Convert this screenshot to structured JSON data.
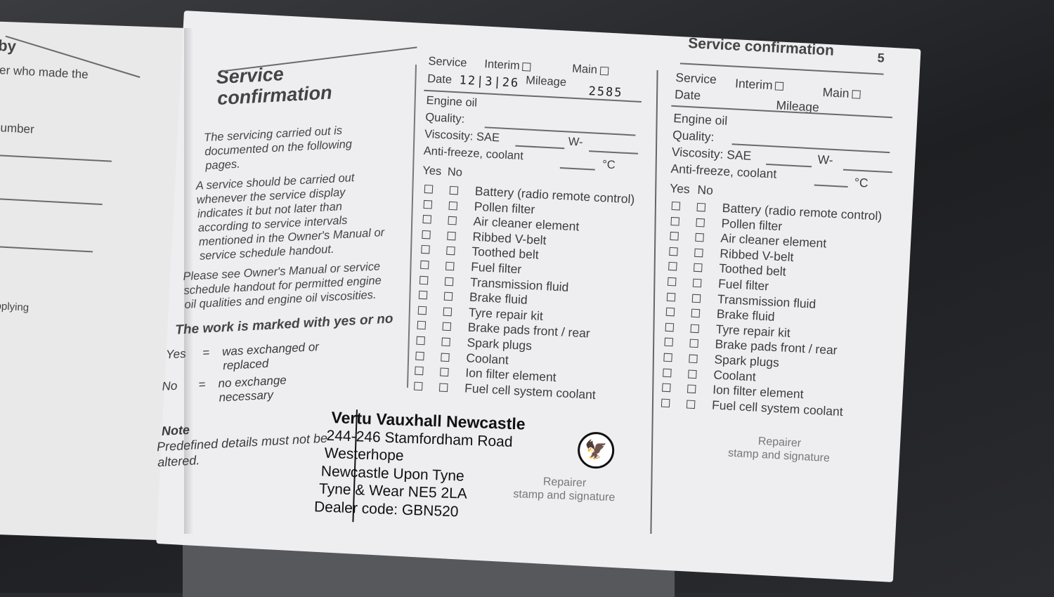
{
  "left_page": {
    "fragments": [
      "by",
      "ler who made the",
      "number",
      "supplying",
      "r"
    ]
  },
  "header": {
    "title": "Service confirmation",
    "page_number": "5"
  },
  "intro": {
    "title_line1": "Service",
    "title_line2": "confirmation",
    "p1": "The servicing carried out is documented on the following pages.",
    "p2": "A service should be carried out whenever the service display indicates it but not later than according to service intervals mentioned in the Owner's Manual or service schedule handout.",
    "p3": "Please see Owner's Manual or service schedule handout for permitted engine oil qualities and engine oil viscosities.",
    "p4": "The work is marked with yes or no",
    "yes_label": "Yes",
    "yes_eq": "=",
    "yes_text": "was exchanged or replaced",
    "no_label": "No",
    "no_eq": "=",
    "no_text": "no exchange necessary",
    "note_title": "Note",
    "note_text": "Predefined details must not be altered."
  },
  "form_labels": {
    "service": "Service",
    "interim": "Interim",
    "main": "Main",
    "date": "Date",
    "mileage": "Mileage",
    "engine_oil": "Engine oil",
    "quality": "Quality:",
    "viscosity": "Viscosity:",
    "sae": "SAE",
    "w": "W-",
    "antifreeze": "Anti-freeze, coolant",
    "celsius": "°C",
    "yes": "Yes",
    "no": "No",
    "repairer": "Repairer",
    "stamp": "stamp and signature"
  },
  "checklist": [
    "Battery (radio remote control)",
    "Pollen filter",
    "Air cleaner element",
    "Ribbed V-belt",
    "Toothed belt",
    "Fuel filter",
    "Transmission fluid",
    "Brake fluid",
    "Tyre repair kit",
    "Brake pads front / rear",
    "Spark plugs",
    "Coolant",
    "Ion filter element",
    "Fuel cell system coolant"
  ],
  "form1": {
    "date": "12|3|26",
    "mileage": "2585"
  },
  "form2": {
    "date": "",
    "mileage": ""
  },
  "stamp": {
    "lines": [
      "Vertu Vauxhall Newcastle",
      "244-246 Stamfordham Road",
      "Westerhope",
      "Newcastle Upon Tyne",
      "Tyne & Wear  NE5 2LA",
      "Dealer code: GBN520"
    ],
    "logo": "vauxhall-griffin-logo"
  }
}
